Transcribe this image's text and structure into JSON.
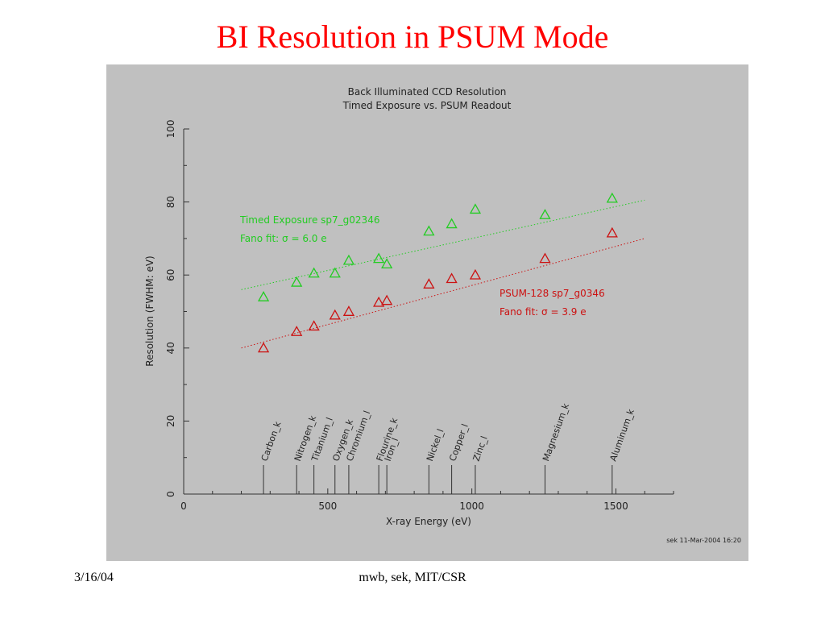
{
  "slide": {
    "title": "BI Resolution in PSUM Mode",
    "footer_date": "3/16/04",
    "footer_center": "mwb, sek, MIT/CSR"
  },
  "colors": {
    "plot_bg": "#c0c0c0",
    "timed": "#22cc22",
    "psum": "#cc1111",
    "title": "#ff0000"
  },
  "chart_data": {
    "type": "scatter",
    "title": "Back Illuminated CCD Resolution",
    "subtitle": "Timed Exposure vs. PSUM Readout",
    "xlabel": "X-ray Energy (eV)",
    "ylabel": "Resolution (FWHM: eV)",
    "xlim": [
      0,
      1700
    ],
    "ylim": [
      0,
      100
    ],
    "xticks": [
      0,
      500,
      1000,
      1500
    ],
    "yticks": [
      0,
      20,
      40,
      60,
      80,
      100
    ],
    "stamp": "sek 11-Mar-2004 16:20",
    "series": [
      {
        "name": "Timed Exposure sp7_g02346",
        "fit_label": "Fano fit: σ = 6.0 e",
        "color": "#22cc22",
        "marker": "triangle",
        "x": [
          277,
          392,
          452,
          525,
          573,
          677,
          705,
          851,
          930,
          1012,
          1254,
          1487
        ],
        "y": [
          54,
          58,
          60.5,
          60.5,
          64,
          64.5,
          63,
          72,
          74,
          78,
          76.5,
          81
        ],
        "fit": {
          "x": [
            200,
            1600
          ],
          "y": [
            56,
            80.5
          ]
        }
      },
      {
        "name": "PSUM-128 sp7_g0346",
        "fit_label": "Fano fit: σ = 3.9 e",
        "color": "#cc1111",
        "marker": "triangle",
        "x": [
          277,
          392,
          452,
          525,
          573,
          677,
          705,
          851,
          930,
          1012,
          1254,
          1487
        ],
        "y": [
          40,
          44.5,
          46,
          49,
          50,
          52.5,
          53,
          57.5,
          59,
          60,
          64.5,
          71.5
        ],
        "fit": {
          "x": [
            200,
            1600
          ],
          "y": [
            40,
            70
          ]
        }
      }
    ],
    "lines": [
      {
        "label": "Carbon_k",
        "x": 277
      },
      {
        "label": "Nitrogen_k",
        "x": 392
      },
      {
        "label": "Titanium_l",
        "x": 452
      },
      {
        "label": "Oxygen_k",
        "x": 525
      },
      {
        "label": "Chromium_l",
        "x": 573
      },
      {
        "label": "Flourine_k",
        "x": 677
      },
      {
        "label": "Iron_l",
        "x": 705
      },
      {
        "label": "Nickel_l",
        "x": 851
      },
      {
        "label": "Copper_l",
        "x": 930
      },
      {
        "label": "Zinc_l",
        "x": 1012
      },
      {
        "label": "Magnesium_k",
        "x": 1254
      },
      {
        "label": "Aluminum_k",
        "x": 1487
      }
    ]
  }
}
